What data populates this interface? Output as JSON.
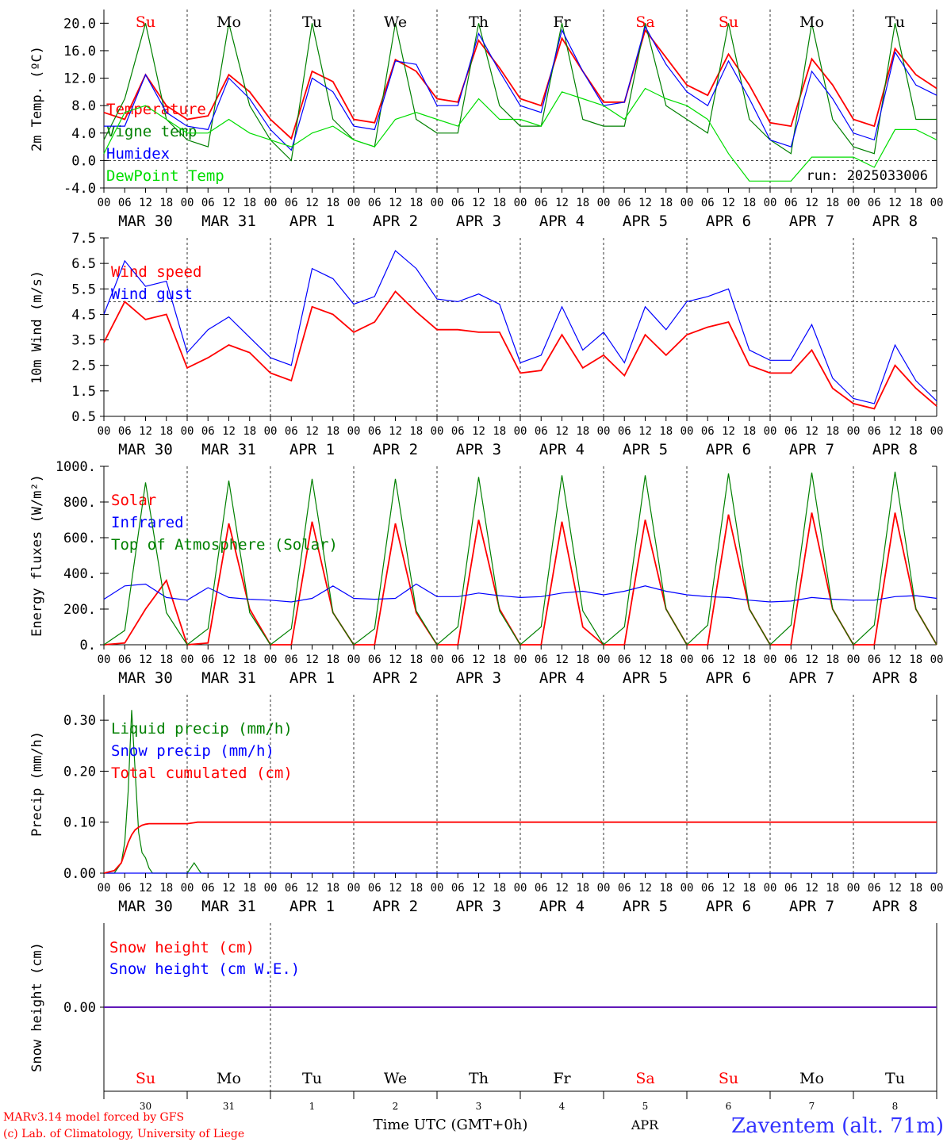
{
  "run_label": "run: 2025033006",
  "footer": {
    "credit1": "MARv3.14 model forced by GFS",
    "credit2": "(c) Lab. of Climatology, University of Liege",
    "xlabel": "Time UTC (GMT+0h)",
    "month": "APR",
    "station": "Zaventem (alt. 71m)"
  },
  "colors": {
    "red": "#ff0000",
    "green": "#008000",
    "blue": "#0000ff",
    "lightgreen": "#00dd00",
    "axis": "#000000"
  },
  "days": {
    "weekday": [
      "Su",
      "Mo",
      "Tu",
      "We",
      "Th",
      "Fr",
      "Sa",
      "Su",
      "Mo",
      "Tu"
    ],
    "weekday_color": [
      "red",
      "black",
      "black",
      "black",
      "black",
      "black",
      "red",
      "red",
      "black",
      "black"
    ],
    "dates": [
      "MAR 30",
      "MAR 31",
      "APR  1",
      "APR  2",
      "APR  3",
      "APR  4",
      "APR  5",
      "APR  6",
      "APR  7",
      "APR  8"
    ],
    "daynum": [
      "30",
      "31",
      "1",
      "2",
      "3",
      "4",
      "5",
      "6",
      "7",
      "8"
    ],
    "hour_ticks": [
      "00",
      "06",
      "12",
      "18"
    ],
    "end_tick": "00"
  },
  "chart_data": [
    {
      "type": "line",
      "ylabel": "2m Temp. (ºC)",
      "ylim": [
        -4,
        22
      ],
      "yticks": [
        "-4.0",
        "0.0",
        "4.0",
        "8.0",
        "12.0",
        "16.0",
        "20.0"
      ],
      "reference_line": 0,
      "x_hours": [
        0,
        6,
        12,
        18,
        24,
        30,
        36,
        42,
        48,
        54,
        60,
        66,
        72,
        78,
        84,
        90,
        96,
        102,
        108,
        114,
        120,
        126,
        132,
        138,
        144,
        150,
        156,
        162,
        168,
        174,
        180,
        186,
        192,
        198,
        204,
        210,
        216,
        222,
        228,
        234,
        240
      ],
      "series": [
        {
          "name": "Temperature",
          "color": "red",
          "values": [
            7,
            6,
            12.5,
            8,
            6,
            6.5,
            12.5,
            10,
            6,
            3.2,
            13,
            11.5,
            6,
            5.5,
            14.7,
            13,
            9,
            8.5,
            17.5,
            13.5,
            9,
            8,
            17.8,
            13,
            8.5,
            8.5,
            19,
            15,
            11,
            9.5,
            15.5,
            11,
            5.5,
            5,
            14.8,
            11,
            6,
            5,
            16.3,
            12.5,
            10.5
          ]
        },
        {
          "name": "Vigne temp",
          "color": "green",
          "values": [
            3,
            9,
            20,
            6,
            3,
            2,
            20,
            8,
            3,
            0,
            20,
            6,
            3,
            2,
            20,
            6,
            4,
            4,
            20,
            8,
            5,
            5,
            20,
            6,
            5,
            5,
            20,
            8,
            6,
            4,
            20,
            6,
            3,
            1,
            20,
            6,
            2,
            1,
            20,
            6,
            6
          ]
        },
        {
          "name": "Humidex",
          "color": "blue",
          "values": [
            5,
            5,
            12.5,
            7,
            5,
            4.5,
            12,
            9,
            4.5,
            1.5,
            12,
            10,
            5,
            4.5,
            14.5,
            14,
            8,
            8,
            18.5,
            13,
            8,
            7,
            19,
            13,
            8,
            8.5,
            19.5,
            14,
            10,
            8,
            14.5,
            9,
            3,
            2,
            13,
            9,
            4,
            3,
            15.8,
            11,
            9.5
          ]
        },
        {
          "name": "DewPoint Temp",
          "color": "lightgreen",
          "values": [
            1,
            7,
            8,
            6,
            4,
            4,
            6,
            4,
            3,
            2,
            4,
            5,
            3,
            2,
            6,
            7,
            6,
            5,
            9,
            6,
            6,
            5,
            10,
            9,
            8,
            6,
            10.5,
            9,
            8,
            6,
            1,
            -3,
            -3,
            -3,
            0.5,
            0.5,
            0.5,
            -1,
            4.5,
            4.5,
            3
          ]
        }
      ]
    },
    {
      "type": "line",
      "ylabel": "10m Wind (m/s)",
      "ylim": [
        0.5,
        7.5
      ],
      "yticks": [
        "0.5",
        "1.5",
        "2.5",
        "3.5",
        "4.5",
        "5.5",
        "6.5",
        "7.5"
      ],
      "reference_line": 5,
      "x_hours": [
        0,
        6,
        12,
        18,
        24,
        30,
        36,
        42,
        48,
        54,
        60,
        66,
        72,
        78,
        84,
        90,
        96,
        102,
        108,
        114,
        120,
        126,
        132,
        138,
        144,
        150,
        156,
        162,
        168,
        174,
        180,
        186,
        192,
        198,
        204,
        210,
        216,
        222,
        228,
        234,
        240
      ],
      "series": [
        {
          "name": "Wind speed",
          "color": "red",
          "values": [
            3.4,
            5,
            4.3,
            4.5,
            2.4,
            2.8,
            3.3,
            3,
            2.2,
            1.9,
            4.8,
            4.5,
            3.8,
            4.2,
            5.4,
            4.6,
            3.9,
            3.9,
            3.8,
            3.8,
            2.2,
            2.3,
            3.7,
            2.4,
            2.9,
            2.1,
            3.7,
            2.9,
            3.7,
            4,
            4.2,
            2.5,
            2.2,
            2.2,
            3.1,
            1.6,
            1,
            0.8,
            2.5,
            1.6,
            0.9
          ]
        },
        {
          "name": "Wind gust",
          "color": "blue",
          "values": [
            4.5,
            6.6,
            5.6,
            5.8,
            3.0,
            3.9,
            4.4,
            3.6,
            2.8,
            2.5,
            6.3,
            5.9,
            4.9,
            5.2,
            7.0,
            6.3,
            5.1,
            5.0,
            5.3,
            4.9,
            2.6,
            2.9,
            4.8,
            3.1,
            3.8,
            2.6,
            4.8,
            3.9,
            5.0,
            5.2,
            5.5,
            3.1,
            2.7,
            2.7,
            4.1,
            2.0,
            1.2,
            1.0,
            3.3,
            1.9,
            1.1
          ]
        }
      ]
    },
    {
      "type": "line",
      "ylabel": "Energy fluxes (W/m²)",
      "ylim": [
        0,
        1000
      ],
      "yticks": [
        "0.",
        "200.",
        "400.",
        "600.",
        "800.",
        "1000."
      ],
      "x_hours": [
        0,
        6,
        12,
        18,
        24,
        30,
        36,
        42,
        48,
        54,
        60,
        66,
        72,
        78,
        84,
        90,
        96,
        102,
        108,
        114,
        120,
        126,
        132,
        138,
        144,
        150,
        156,
        162,
        168,
        174,
        180,
        186,
        192,
        198,
        204,
        210,
        216,
        222,
        228,
        234,
        240
      ],
      "series": [
        {
          "name": "Solar",
          "color": "red",
          "values": [
            0,
            10,
            200,
            360,
            0,
            10,
            680,
            200,
            0,
            0,
            690,
            180,
            0,
            0,
            680,
            180,
            0,
            0,
            700,
            200,
            0,
            0,
            690,
            100,
            0,
            0,
            700,
            200,
            0,
            0,
            730,
            200,
            0,
            0,
            740,
            200,
            0,
            0,
            740,
            200,
            0
          ]
        },
        {
          "name": "Infrared",
          "color": "blue",
          "values": [
            255,
            330,
            340,
            265,
            250,
            320,
            265,
            255,
            250,
            240,
            260,
            330,
            260,
            255,
            260,
            340,
            270,
            270,
            290,
            275,
            265,
            270,
            290,
            300,
            280,
            300,
            330,
            300,
            280,
            270,
            265,
            250,
            240,
            245,
            265,
            255,
            250,
            250,
            270,
            275,
            260
          ]
        },
        {
          "name": "Top of Atmosphere (Solar)",
          "color": "green",
          "values": [
            0,
            80,
            910,
            180,
            0,
            90,
            920,
            180,
            0,
            90,
            930,
            180,
            0,
            90,
            930,
            190,
            0,
            100,
            940,
            190,
            0,
            100,
            950,
            190,
            0,
            100,
            950,
            200,
            0,
            110,
            960,
            200,
            0,
            110,
            965,
            200,
            0,
            110,
            970,
            200,
            0
          ]
        }
      ]
    },
    {
      "type": "line",
      "ylabel": "Precip (mm/h)",
      "ylim": [
        0,
        0.35
      ],
      "yticks": [
        "0.00",
        "0.10",
        "0.20",
        "0.30"
      ],
      "x_hours": [
        0,
        3,
        5,
        6,
        7,
        8,
        9,
        10,
        11,
        12,
        13,
        14,
        18,
        24,
        25,
        26,
        27,
        28,
        240
      ],
      "series": [
        {
          "name": "Liquid precip (mm/h)",
          "color": "green",
          "values": [
            0,
            0,
            0.02,
            0.06,
            0.16,
            0.32,
            0.2,
            0.08,
            0.04,
            0.03,
            0.01,
            0,
            0,
            0,
            0.01,
            0.02,
            0.01,
            0,
            0
          ]
        },
        {
          "name": "Snow precip (mm/h)",
          "color": "blue",
          "values": [
            0,
            0,
            0,
            0,
            0,
            0,
            0,
            0,
            0,
            0,
            0,
            0,
            0,
            0,
            0,
            0,
            0,
            0,
            0
          ]
        },
        {
          "name": "Total cumulated (cm)",
          "color": "red",
          "values": [
            0,
            0.005,
            0.02,
            0.04,
            0.06,
            0.075,
            0.085,
            0.09,
            0.094,
            0.096,
            0.097,
            0.097,
            0.097,
            0.097,
            0.098,
            0.099,
            0.1,
            0.1,
            0.1
          ]
        }
      ]
    },
    {
      "type": "line",
      "ylabel": "Snow height (cm)",
      "ylim": [
        -1,
        1
      ],
      "yticks": [
        "0.00"
      ],
      "x_hours": [
        0,
        240
      ],
      "series": [
        {
          "name": "Snow height (cm)",
          "color": "red",
          "values": [
            0,
            0
          ]
        },
        {
          "name": "Snow height (cm W.E.)",
          "color": "blue",
          "values": [
            0,
            0
          ]
        }
      ]
    }
  ]
}
